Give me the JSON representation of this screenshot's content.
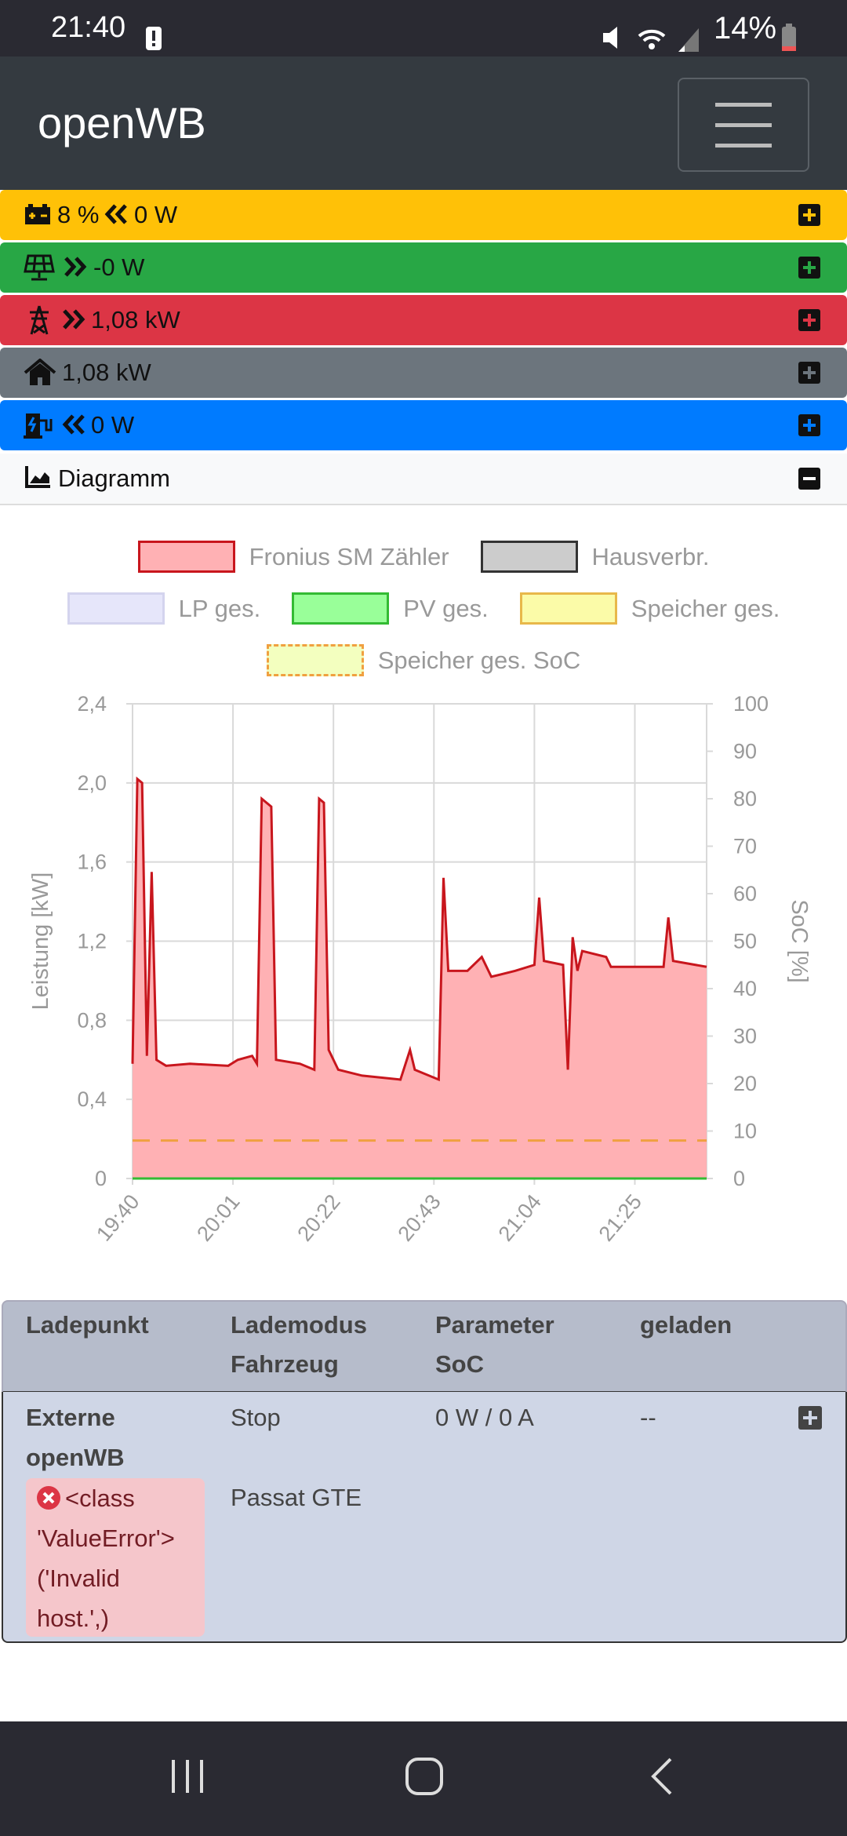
{
  "status_bar": {
    "time": "21:40",
    "battery": "14%"
  },
  "navbar": {
    "brand": "openWB"
  },
  "summary": {
    "battery": {
      "soc": "8 %",
      "power": "0 W"
    },
    "pv": {
      "power": "-0 W"
    },
    "grid": {
      "power": "1,08 kW"
    },
    "house": {
      "power": "1,08 kW"
    },
    "charge": {
      "power": "0 W"
    }
  },
  "diagram": {
    "title": "Diagramm"
  },
  "chart_data": {
    "type": "line",
    "x": [
      "19:40",
      "19:41",
      "19:42",
      "19:43",
      "19:44",
      "19:45",
      "19:47",
      "19:52",
      "20:00",
      "20:02",
      "20:05",
      "20:06",
      "20:07",
      "20:09",
      "20:10",
      "20:15",
      "20:18",
      "20:19",
      "20:20",
      "20:21",
      "20:23",
      "20:28",
      "20:36",
      "20:38",
      "20:39",
      "20:44",
      "20:45",
      "20:46",
      "20:50",
      "20:53",
      "20:55",
      "21:00",
      "21:04",
      "21:05",
      "21:06",
      "21:10",
      "21:11",
      "21:12",
      "21:13",
      "21:14",
      "21:19",
      "21:20",
      "21:31",
      "21:32",
      "21:33",
      "21:40"
    ],
    "xlim": [
      "19:40",
      "21:40"
    ],
    "xticks": [
      "19:40",
      "20:01",
      "20:22",
      "20:43",
      "21:04",
      "21:25"
    ],
    "ylim": [
      0,
      2.4
    ],
    "yticks": [
      0,
      {
        "value": 0.4,
        "label": "0,4"
      },
      {
        "value": 0.8,
        "label": "0,8"
      },
      {
        "value": 1.2,
        "label": "1,2"
      },
      {
        "value": 1.6,
        "label": "1,6"
      },
      {
        "value": 2.0,
        "label": "2,0"
      },
      {
        "value": 2.4,
        "label": "2,4"
      }
    ],
    "y2lim": [
      0,
      100
    ],
    "y2ticks": [
      0,
      10,
      20,
      30,
      40,
      50,
      60,
      70,
      80,
      90,
      100
    ],
    "ylabel": "Leistung [kW]",
    "y2label": "SoC [%]",
    "grid": true,
    "series": [
      {
        "name": "Fronius SM Zähler",
        "color": "#c8161d",
        "fill": "#ffb1b4",
        "values": [
          0.58,
          2.02,
          2.0,
          0.62,
          1.55,
          0.6,
          0.57,
          0.58,
          0.57,
          0.6,
          0.62,
          0.58,
          1.92,
          1.88,
          0.6,
          0.58,
          0.55,
          1.92,
          1.9,
          0.65,
          0.55,
          0.52,
          0.5,
          0.65,
          0.55,
          0.5,
          1.52,
          1.05,
          1.05,
          1.12,
          1.02,
          1.05,
          1.08,
          1.42,
          1.1,
          1.08,
          0.55,
          1.22,
          1.05,
          1.15,
          1.12,
          1.07,
          1.07,
          1.32,
          1.1,
          1.07
        ]
      },
      {
        "name": "Hausverbr.",
        "color": "#333333",
        "fill": "#cccccc"
      },
      {
        "name": "LP ges.",
        "color": "#d4d4ee",
        "fill": "#e6e6fa"
      },
      {
        "name": "PV ges.",
        "color": "#33bb33",
        "fill": "#99ff99",
        "values": [
          0,
          0,
          0,
          0,
          0,
          0,
          0,
          0,
          0,
          0,
          0,
          0,
          0,
          0,
          0,
          0,
          0,
          0,
          0,
          0,
          0,
          0,
          0,
          0,
          0,
          0,
          0,
          0,
          0,
          0,
          0,
          0,
          0,
          0,
          0,
          0,
          0,
          0,
          0,
          0,
          0,
          0,
          0,
          0,
          0,
          0
        ]
      },
      {
        "name": "Speicher ges.",
        "color": "#e8b84a",
        "fill": "#fbfba8"
      },
      {
        "name": "Speicher ges. SoC",
        "color": "#f0a040",
        "fill": "#f3ffbf",
        "dash": true,
        "axis": "y2",
        "values": [
          8,
          8,
          8,
          8,
          8,
          8,
          8,
          8,
          8,
          8,
          8,
          8,
          8,
          8,
          8,
          8,
          8,
          8,
          8,
          8,
          8,
          8,
          8,
          8,
          8,
          8,
          8,
          8,
          8,
          8,
          8,
          8,
          8,
          8,
          8,
          8,
          8,
          8,
          8,
          8,
          8,
          8,
          8,
          8,
          8,
          8
        ]
      }
    ]
  },
  "table": {
    "header": [
      [
        "Ladepunkt"
      ],
      [
        "Lademodus",
        "Fahrzeug"
      ],
      [
        "Parameter",
        "SoC"
      ],
      [
        "geladen"
      ]
    ],
    "rows": [
      {
        "name": "Externe openWB",
        "error": "<class 'ValueError'> ('Invalid host.',)",
        "mode": "Stop",
        "vehicle": "Passat GTE",
        "parameter": "0 W / 0 A",
        "charged": "--"
      }
    ]
  }
}
